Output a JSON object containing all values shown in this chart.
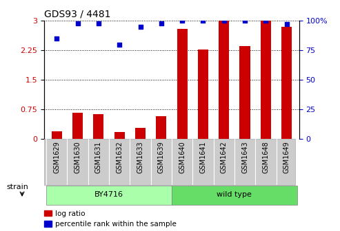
{
  "title": "GDS93 / 4481",
  "categories": [
    "GSM1629",
    "GSM1630",
    "GSM1631",
    "GSM1632",
    "GSM1633",
    "GSM1639",
    "GSM1640",
    "GSM1641",
    "GSM1642",
    "GSM1643",
    "GSM1648",
    "GSM1649"
  ],
  "log_ratio": [
    0.18,
    0.65,
    0.62,
    0.17,
    0.28,
    0.57,
    2.8,
    2.27,
    3.0,
    2.35,
    3.0,
    2.85
  ],
  "percentile": [
    85,
    98,
    98,
    80,
    95,
    98,
    100,
    100,
    100,
    100,
    100,
    97
  ],
  "bar_color": "#cc0000",
  "marker_color": "#0000cc",
  "ylim_left": [
    0,
    3
  ],
  "ylim_right": [
    0,
    100
  ],
  "yticks_left": [
    0,
    0.75,
    1.5,
    2.25,
    3.0
  ],
  "ytick_labels_left": [
    "0",
    "0.75",
    "1.5",
    "2.25",
    "3"
  ],
  "yticks_right": [
    0,
    25,
    50,
    75,
    100
  ],
  "ytick_labels_right": [
    "0",
    "25",
    "50",
    "75",
    "100%"
  ],
  "group1_label": "BY4716",
  "group2_label": "wild type",
  "group1_indices": [
    0,
    1,
    2,
    3,
    4,
    5
  ],
  "group2_indices": [
    6,
    7,
    8,
    9,
    10,
    11
  ],
  "group1_color": "#aaffaa",
  "group2_color": "#66dd66",
  "strain_label": "strain",
  "legend_bar_label": "log ratio",
  "legend_marker_label": "percentile rank within the sample",
  "tick_area_color": "#cccccc",
  "spine_color": "#aaaaaa"
}
